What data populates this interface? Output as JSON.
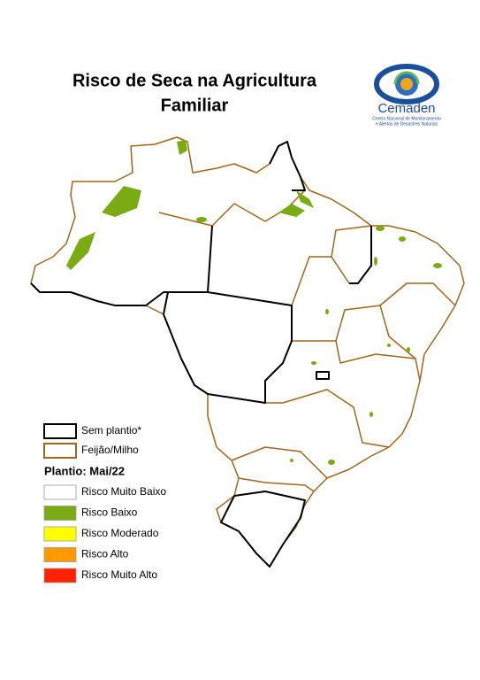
{
  "title_lines": [
    "Risco de Seca na Agricultura",
    "Familiar"
  ],
  "logo": {
    "name": "Cemaden",
    "subtitle_lines": [
      "Centro Nacional de Monitoramento",
      "e Alertas de Desastres Naturais"
    ]
  },
  "legend": {
    "boundaries": [
      {
        "label": "Sem plantio*",
        "color": "#000000"
      },
      {
        "label": "Feijão/Milho",
        "color": "#a0661a"
      }
    ],
    "heading": "Plantio: Mai/22",
    "classes": [
      {
        "label": "Risco Muito Baixo",
        "color": "#ffffff"
      },
      {
        "label": "Risco Baixo",
        "color": "#7aab12"
      },
      {
        "label": "Risco Moderado",
        "color": "#ffff00"
      },
      {
        "label": "Risco Alto",
        "color": "#ff9900"
      },
      {
        "label": "Risco Muito Alto",
        "color": "#ff2200"
      }
    ]
  }
}
